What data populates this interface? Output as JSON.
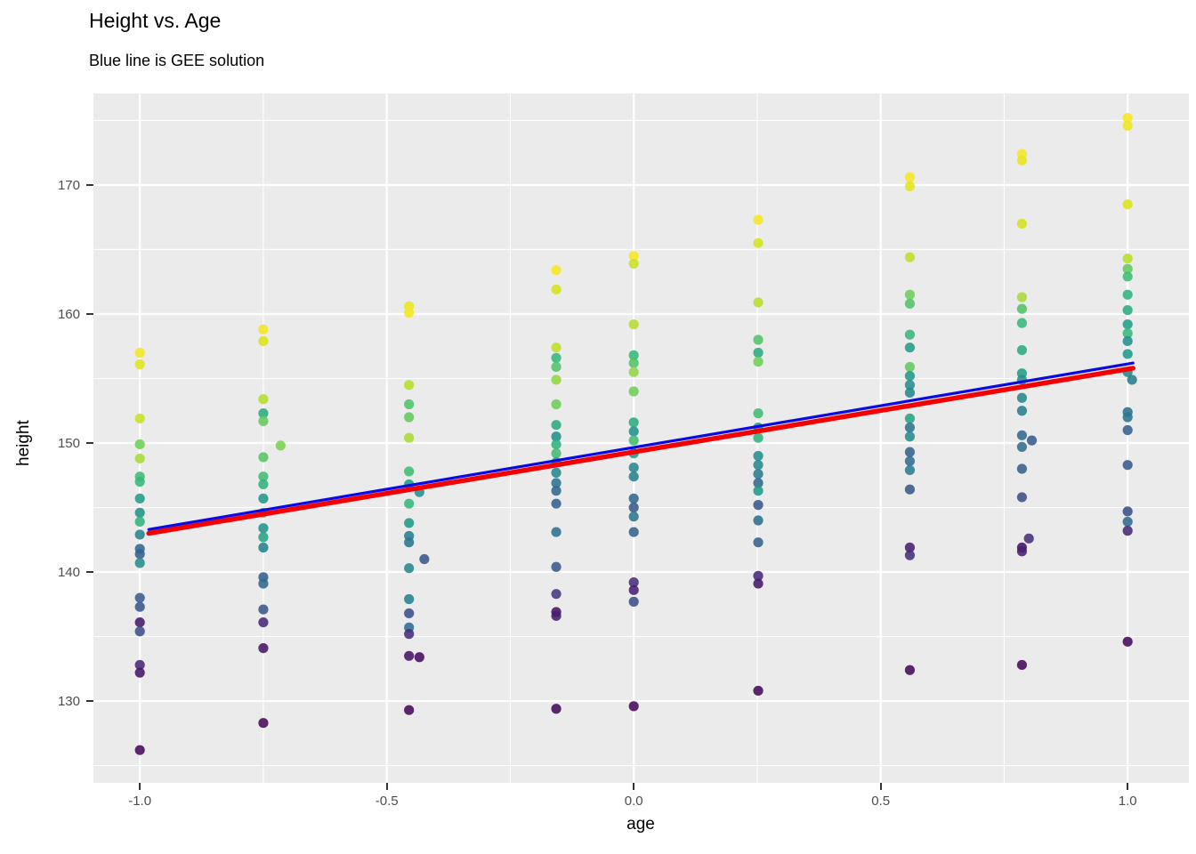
{
  "title": "Height vs. Age",
  "subtitle": "Blue line is GEE solution",
  "chart_data": {
    "type": "scatter",
    "title": "Height vs. Age",
    "subtitle": "Blue line is GEE solution",
    "xlabel": "age",
    "ylabel": "height",
    "xlim": [
      -1.094,
      1.124
    ],
    "ylim": [
      123.66,
      177.1
    ],
    "x_major_ticks": [
      -1.0,
      -0.5,
      0.0,
      0.5,
      1.0
    ],
    "x_tick_labels": [
      "-1.0",
      "-0.5",
      "0.0",
      "0.5",
      "1.0"
    ],
    "x_minor_ticks": [
      -0.75,
      -0.25,
      0.25,
      0.75
    ],
    "y_major_ticks": [
      130,
      140,
      150,
      160,
      170
    ],
    "y_tick_labels": [
      "130",
      "140",
      "150",
      "160",
      "170"
    ],
    "y_minor_ticks": [
      125,
      135,
      145,
      155,
      165,
      175
    ],
    "grid": "on",
    "legend": "none",
    "panel_bg": "#ebebeb",
    "grid_color": "#ffffff",
    "tick_label_color": "#4d4d4d",
    "colormap": "viridis",
    "point_color_note": "points colored by subject on viridis scale (yellow high, purple low within each age column)",
    "point_opacity": 0.88,
    "points": [
      [
        -1.0,
        157.0,
        0.97
      ],
      [
        -1.0,
        156.1,
        0.92
      ],
      [
        -1.0,
        151.9,
        0.85
      ],
      [
        -1.0,
        149.9,
        0.7
      ],
      [
        -1.0,
        148.8,
        0.78
      ],
      [
        -1.0,
        147.4,
        0.62
      ],
      [
        -1.0,
        147.0,
        0.6
      ],
      [
        -1.0,
        145.7,
        0.5
      ],
      [
        -1.0,
        144.6,
        0.46
      ],
      [
        -1.0,
        143.9,
        0.58
      ],
      [
        -1.0,
        142.9,
        0.4
      ],
      [
        -1.0,
        141.8,
        0.3
      ],
      [
        -1.0,
        141.4,
        0.27
      ],
      [
        -1.0,
        140.7,
        0.44
      ],
      [
        -1.0,
        138.0,
        0.26
      ],
      [
        -1.0,
        137.3,
        0.24
      ],
      [
        -1.0,
        136.1,
        0.06
      ],
      [
        -1.0,
        135.4,
        0.22
      ],
      [
        -1.0,
        132.8,
        0.1
      ],
      [
        -1.0,
        132.2,
        0.05
      ],
      [
        -1.0,
        126.2,
        0.02
      ],
      [
        -0.75,
        158.8,
        0.97
      ],
      [
        -0.75,
        157.9,
        0.9
      ],
      [
        -0.75,
        153.4,
        0.8
      ],
      [
        -0.75,
        152.3,
        0.55
      ],
      [
        -0.75,
        151.7,
        0.68
      ],
      [
        -0.715,
        149.8,
        0.72
      ],
      [
        -0.75,
        148.9,
        0.66
      ],
      [
        -0.75,
        147.4,
        0.62
      ],
      [
        -0.75,
        146.8,
        0.58
      ],
      [
        -0.75,
        145.7,
        0.48
      ],
      [
        -0.75,
        144.6,
        0.6
      ],
      [
        -0.75,
        143.4,
        0.46
      ],
      [
        -0.75,
        142.7,
        0.52
      ],
      [
        -0.75,
        141.9,
        0.4
      ],
      [
        -0.75,
        139.6,
        0.28
      ],
      [
        -0.75,
        139.1,
        0.3
      ],
      [
        -0.75,
        137.1,
        0.24
      ],
      [
        -0.75,
        136.1,
        0.1
      ],
      [
        -0.75,
        134.1,
        0.05
      ],
      [
        -0.75,
        128.3,
        0.02
      ],
      [
        -0.455,
        160.6,
        0.95
      ],
      [
        -0.455,
        160.1,
        0.97
      ],
      [
        -0.455,
        154.5,
        0.8
      ],
      [
        -0.455,
        153.0,
        0.65
      ],
      [
        -0.455,
        152.0,
        0.68
      ],
      [
        -0.455,
        150.4,
        0.78
      ],
      [
        -0.455,
        147.8,
        0.62
      ],
      [
        -0.455,
        146.8,
        0.5
      ],
      [
        -0.434,
        146.2,
        0.45
      ],
      [
        -0.455,
        145.3,
        0.6
      ],
      [
        -0.455,
        143.8,
        0.48
      ],
      [
        -0.455,
        142.8,
        0.38
      ],
      [
        -0.455,
        142.3,
        0.35
      ],
      [
        -0.424,
        141.0,
        0.25
      ],
      [
        -0.455,
        140.3,
        0.42
      ],
      [
        -0.455,
        137.9,
        0.4
      ],
      [
        -0.455,
        136.8,
        0.22
      ],
      [
        -0.455,
        135.7,
        0.32
      ],
      [
        -0.455,
        135.2,
        0.12
      ],
      [
        -0.455,
        133.5,
        0.05
      ],
      [
        -0.434,
        133.4,
        0.03
      ],
      [
        -0.455,
        129.3,
        0.02
      ],
      [
        -0.157,
        163.4,
        0.98
      ],
      [
        -0.157,
        161.9,
        0.88
      ],
      [
        -0.157,
        157.4,
        0.82
      ],
      [
        -0.157,
        156.6,
        0.6
      ],
      [
        -0.157,
        155.9,
        0.65
      ],
      [
        -0.157,
        154.9,
        0.75
      ],
      [
        -0.157,
        153.0,
        0.7
      ],
      [
        -0.157,
        151.4,
        0.55
      ],
      [
        -0.157,
        150.5,
        0.45
      ],
      [
        -0.157,
        149.9,
        0.58
      ],
      [
        -0.157,
        149.2,
        0.62
      ],
      [
        -0.157,
        148.5,
        0.48
      ],
      [
        -0.157,
        147.7,
        0.42
      ],
      [
        -0.157,
        146.9,
        0.35
      ],
      [
        -0.157,
        146.3,
        0.3
      ],
      [
        -0.157,
        145.3,
        0.28
      ],
      [
        -0.157,
        143.1,
        0.33
      ],
      [
        -0.157,
        140.4,
        0.25
      ],
      [
        -0.157,
        138.3,
        0.15
      ],
      [
        -0.157,
        136.9,
        0.05
      ],
      [
        -0.157,
        136.6,
        0.08
      ],
      [
        -0.157,
        129.4,
        0.02
      ],
      [
        0.0,
        164.5,
        0.98
      ],
      [
        0.0,
        163.9,
        0.85
      ],
      [
        0.0,
        159.2,
        0.8
      ],
      [
        0.0,
        156.8,
        0.6
      ],
      [
        0.0,
        156.2,
        0.65
      ],
      [
        0.0,
        155.5,
        0.75
      ],
      [
        0.0,
        154.0,
        0.7
      ],
      [
        0.0,
        151.6,
        0.55
      ],
      [
        0.0,
        150.9,
        0.45
      ],
      [
        0.0,
        150.2,
        0.62
      ],
      [
        0.0,
        149.2,
        0.48
      ],
      [
        0.0,
        148.1,
        0.42
      ],
      [
        0.0,
        147.4,
        0.4
      ],
      [
        0.0,
        145.7,
        0.3
      ],
      [
        0.0,
        145.0,
        0.25
      ],
      [
        0.0,
        144.3,
        0.35
      ],
      [
        0.0,
        143.1,
        0.28
      ],
      [
        0.0,
        139.2,
        0.12
      ],
      [
        0.0,
        138.6,
        0.08
      ],
      [
        0.0,
        137.7,
        0.22
      ],
      [
        0.0,
        129.6,
        0.02
      ],
      [
        0.252,
        167.3,
        0.98
      ],
      [
        0.252,
        165.5,
        0.88
      ],
      [
        0.252,
        160.9,
        0.8
      ],
      [
        0.252,
        158.0,
        0.65
      ],
      [
        0.252,
        157.0,
        0.55
      ],
      [
        0.252,
        156.3,
        0.7
      ],
      [
        0.252,
        152.3,
        0.62
      ],
      [
        0.252,
        151.2,
        0.5
      ],
      [
        0.252,
        150.4,
        0.58
      ],
      [
        0.252,
        149.0,
        0.45
      ],
      [
        0.252,
        148.3,
        0.42
      ],
      [
        0.252,
        147.6,
        0.38
      ],
      [
        0.252,
        146.9,
        0.3
      ],
      [
        0.252,
        146.3,
        0.48
      ],
      [
        0.252,
        145.2,
        0.25
      ],
      [
        0.252,
        144.0,
        0.33
      ],
      [
        0.252,
        142.3,
        0.28
      ],
      [
        0.252,
        139.7,
        0.1
      ],
      [
        0.252,
        139.1,
        0.06
      ],
      [
        0.252,
        130.8,
        0.02
      ],
      [
        0.559,
        170.6,
        0.98
      ],
      [
        0.559,
        169.9,
        0.92
      ],
      [
        0.559,
        164.4,
        0.82
      ],
      [
        0.559,
        161.5,
        0.7
      ],
      [
        0.559,
        160.8,
        0.65
      ],
      [
        0.559,
        158.4,
        0.6
      ],
      [
        0.559,
        157.4,
        0.5
      ],
      [
        0.559,
        155.9,
        0.68
      ],
      [
        0.559,
        155.2,
        0.48
      ],
      [
        0.559,
        154.5,
        0.45
      ],
      [
        0.559,
        153.9,
        0.42
      ],
      [
        0.559,
        151.9,
        0.52
      ],
      [
        0.559,
        151.2,
        0.35
      ],
      [
        0.559,
        150.5,
        0.44
      ],
      [
        0.559,
        149.3,
        0.28
      ],
      [
        0.559,
        148.6,
        0.32
      ],
      [
        0.559,
        147.9,
        0.38
      ],
      [
        0.559,
        146.4,
        0.25
      ],
      [
        0.559,
        141.9,
        0.08
      ],
      [
        0.559,
        141.3,
        0.12
      ],
      [
        0.559,
        132.4,
        0.02
      ],
      [
        0.786,
        172.4,
        0.98
      ],
      [
        0.786,
        171.9,
        0.94
      ],
      [
        0.786,
        167.0,
        0.88
      ],
      [
        0.786,
        161.3,
        0.78
      ],
      [
        0.786,
        160.4,
        0.65
      ],
      [
        0.786,
        159.3,
        0.6
      ],
      [
        0.786,
        157.2,
        0.55
      ],
      [
        0.786,
        155.4,
        0.5
      ],
      [
        0.786,
        154.9,
        0.45
      ],
      [
        0.786,
        153.5,
        0.42
      ],
      [
        0.786,
        152.5,
        0.38
      ],
      [
        0.786,
        150.6,
        0.3
      ],
      [
        0.806,
        150.2,
        0.26
      ],
      [
        0.786,
        149.7,
        0.33
      ],
      [
        0.786,
        148.0,
        0.28
      ],
      [
        0.786,
        145.8,
        0.22
      ],
      [
        0.8,
        142.6,
        0.12
      ],
      [
        0.786,
        141.9,
        0.05
      ],
      [
        0.786,
        141.6,
        0.08
      ],
      [
        0.786,
        132.8,
        0.02
      ],
      [
        1.0,
        175.2,
        0.98
      ],
      [
        1.0,
        174.6,
        0.95
      ],
      [
        1.0,
        168.5,
        0.9
      ],
      [
        1.0,
        164.3,
        0.8
      ],
      [
        1.0,
        163.5,
        0.68
      ],
      [
        1.0,
        162.9,
        0.62
      ],
      [
        1.0,
        161.5,
        0.58
      ],
      [
        1.0,
        160.3,
        0.55
      ],
      [
        1.0,
        159.2,
        0.5
      ],
      [
        1.0,
        158.5,
        0.6
      ],
      [
        1.0,
        157.9,
        0.45
      ],
      [
        1.0,
        156.9,
        0.48
      ],
      [
        1.0,
        155.5,
        0.42
      ],
      [
        1.009,
        154.9,
        0.38
      ],
      [
        1.0,
        152.4,
        0.32
      ],
      [
        1.0,
        152.0,
        0.35
      ],
      [
        1.0,
        151.0,
        0.28
      ],
      [
        1.0,
        148.3,
        0.25
      ],
      [
        1.0,
        144.7,
        0.22
      ],
      [
        1.0,
        143.9,
        0.3
      ],
      [
        1.0,
        143.2,
        0.1
      ],
      [
        1.0,
        134.6,
        0.02
      ]
    ],
    "lines": [
      {
        "name": "red-fit-line",
        "color": "#f40000",
        "width": 5.4,
        "x1": -0.982,
        "y1": 143.0,
        "x2": 1.011,
        "y2": 155.8
      },
      {
        "name": "gee-blue-line",
        "color": "#0a0ae6",
        "width": 3.2,
        "x1": -0.982,
        "y1": 143.3,
        "x2": 1.011,
        "y2": 156.2
      }
    ]
  }
}
